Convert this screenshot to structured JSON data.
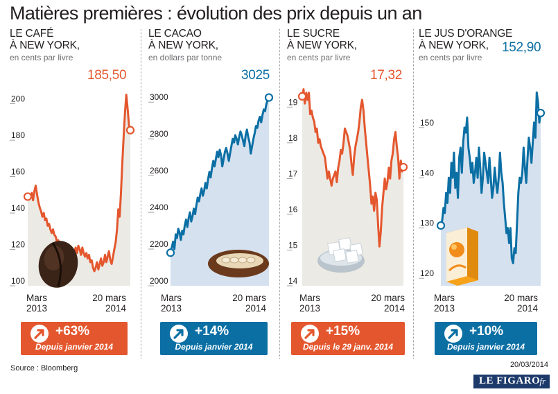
{
  "title": "Matières premières : évolution des prix depuis un an",
  "source": "Source : Bloomberg",
  "date": "20/03/2014",
  "logo": {
    "main": "LE FIGARO",
    "suffix": "·fr"
  },
  "colors": {
    "orange": "#e4572e",
    "blue": "#0b6fa4",
    "orange_fill": "#eceae4",
    "blue_fill": "#d5e1ef"
  },
  "x_labels": {
    "start": "Mars\n2013",
    "end": "20 mars\n2014"
  },
  "chart_data": [
    {
      "type": "line",
      "title": "LE CAFÉ\nÀ NEW YORK,",
      "unit": "en cents par livre",
      "latest_label": "185,50",
      "color": "orange",
      "ylim": [
        100,
        209
      ],
      "yticks": [
        100,
        120,
        140,
        160,
        180,
        200
      ],
      "badge": {
        "pct": "+63%",
        "since": "Depuis janvier 2014",
        "color": "orange"
      },
      "icon": "coffee-bean-icon",
      "series": [
        {
          "values": [
            149,
            150,
            148,
            151,
            147,
            152,
            155,
            150,
            146,
            143,
            141,
            138,
            140,
            136,
            137,
            133,
            134,
            131,
            129,
            131,
            128,
            127,
            124,
            125,
            122,
            121,
            120,
            122,
            119,
            121,
            118,
            120,
            117,
            118,
            116,
            119,
            121,
            118,
            122,
            120,
            117,
            121,
            118,
            116,
            118,
            115,
            117,
            113,
            114,
            110,
            108,
            110,
            113,
            109,
            112,
            115,
            111,
            113,
            117,
            113,
            116,
            119,
            114,
            112,
            116,
            120,
            124,
            131,
            142,
            138,
            151,
            168,
            182,
            195,
            205,
            197,
            188,
            185.5
          ]
        }
      ]
    },
    {
      "type": "line",
      "title": "LE CACAO\nÀ NEW YORK,",
      "unit": "en dollars par tonne",
      "latest_label": "3025",
      "color": "blue",
      "ylim": [
        2000,
        3080
      ],
      "yticks": [
        2000,
        2200,
        2400,
        2600,
        2800,
        3000
      ],
      "badge": {
        "pct": "+14%",
        "since": "Depuis janvier 2014",
        "color": "blue"
      },
      "icon": "cocoa-pod-icon",
      "series": [
        {
          "values": [
            2180,
            2210,
            2240,
            2200,
            2280,
            2260,
            2310,
            2290,
            2250,
            2300,
            2280,
            2330,
            2360,
            2320,
            2370,
            2400,
            2350,
            2380,
            2420,
            2390,
            2440,
            2480,
            2460,
            2500,
            2530,
            2490,
            2520,
            2560,
            2530,
            2580,
            2620,
            2590,
            2640,
            2680,
            2650,
            2690,
            2730,
            2700,
            2740,
            2710,
            2650,
            2690,
            2730,
            2750,
            2720,
            2680,
            2720,
            2760,
            2800,
            2780,
            2820,
            2800,
            2770,
            2810,
            2840,
            2820,
            2790,
            2760,
            2820,
            2850,
            2810,
            2780,
            2720,
            2760,
            2800,
            2830,
            2870,
            2860,
            2900,
            2920,
            2890,
            2930,
            2960,
            2950,
            2990,
            3010,
            3025
          ]
        }
      ]
    },
    {
      "type": "line",
      "title": "LE SUCRE\nÀ NEW YORK,",
      "unit": "en cents par livre",
      "latest_label": "17,32",
      "color": "orange",
      "ylim": [
        14,
        19.55
      ],
      "yticks": [
        14,
        15,
        16,
        17,
        18,
        19
      ],
      "badge": {
        "pct": "+15%",
        "since": "Depuis le 29 janv. 2014",
        "color": "orange"
      },
      "icon": "sugar-cubes-icon",
      "series": [
        {
          "values": [
            19.3,
            19.5,
            19.1,
            19.4,
            19.2,
            19.4,
            18.8,
            18.9,
            18.7,
            18.6,
            18.3,
            18.4,
            18.0,
            18.1,
            17.9,
            17.8,
            17.7,
            17.6,
            17.3,
            17.0,
            17.2,
            17.0,
            16.8,
            17.0,
            17.1,
            17.2,
            16.9,
            17.3,
            17.5,
            17.8,
            17.7,
            18.0,
            18.4,
            18.3,
            18.2,
            18.0,
            17.8,
            17.4,
            17.1,
            17.6,
            17.9,
            18.1,
            18.3,
            18.6,
            19.0,
            19.2,
            18.9,
            18.4,
            18.0,
            17.6,
            17.2,
            16.8,
            16.3,
            16.5,
            16.1,
            16.6,
            16.4,
            15.7,
            15.1,
            15.5,
            16.2,
            16.6,
            17.0,
            16.7,
            16.9,
            17.3,
            17.0,
            17.5,
            17.7,
            18.1,
            18.3,
            17.9,
            17.6,
            17.0,
            17.5,
            17.2,
            17.32
          ]
        }
      ]
    },
    {
      "type": "line",
      "title": "LE JUS D'ORANGE\nÀ NEW YORK,",
      "unit": "en cents par livre",
      "latest_label": "152,90",
      "color": "blue",
      "ylim": [
        118.5,
        158
      ],
      "yticks": [
        120,
        130,
        140,
        150
      ],
      "badge": {
        "pct": "+10%",
        "since": "Depuis janvier 2014",
        "color": "blue"
      },
      "icon": "orange-juice-carton-icon",
      "series": [
        {
          "values": [
            130.5,
            131.5,
            134,
            133,
            137,
            135,
            140,
            137,
            143,
            140,
            145,
            138,
            141,
            136,
            144,
            146,
            141,
            147,
            150,
            149,
            152,
            146,
            144,
            141,
            143,
            139,
            141,
            144,
            140,
            146,
            142,
            137,
            140,
            145,
            143,
            141,
            139,
            144,
            140,
            136,
            138,
            142,
            139,
            137,
            140,
            145,
            141,
            139,
            135,
            132,
            129,
            130,
            127,
            130,
            124,
            123,
            126,
            125,
            131,
            137,
            140,
            139,
            141,
            146,
            142,
            139,
            144,
            148,
            146,
            143,
            147,
            151,
            148,
            157,
            155,
            151,
            152.9
          ]
        }
      ]
    }
  ]
}
